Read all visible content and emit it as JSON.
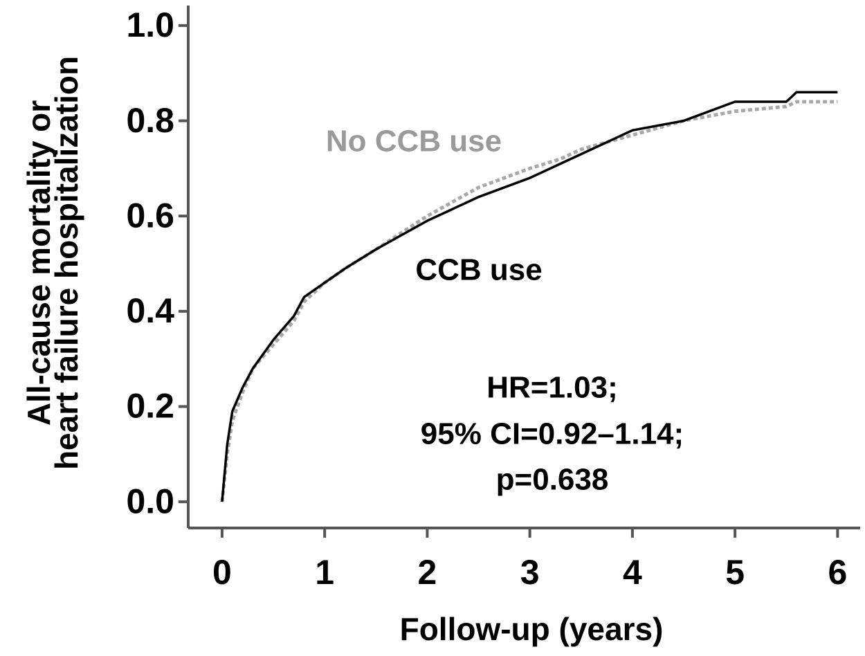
{
  "chart_data": {
    "type": "line",
    "ylabel": [
      "All-cause mortality or",
      "heart failure hospitalization"
    ],
    "xlabel": "Follow-up (years)",
    "annotations": [
      {
        "text": "No CCB use",
        "color": "#9a9a9a"
      },
      {
        "text": "CCB use",
        "color": "#000000"
      },
      {
        "text": "HR=1.03;",
        "color": "#000000"
      },
      {
        "text": "95% CI=0.92–1.14;",
        "color": "#000000"
      },
      {
        "text": "p=0.638",
        "color": "#000000"
      }
    ],
    "x": [
      0,
      0.05,
      0.1,
      0.2,
      0.3,
      0.5,
      0.7,
      0.8,
      1.0,
      1.2,
      1.5,
      2.0,
      2.5,
      3.0,
      3.3,
      3.5,
      4.0,
      4.5,
      5.0,
      5.5,
      5.6,
      6.0
    ],
    "series": [
      {
        "name": "No CCB use",
        "color": "#a8a8a8",
        "dash": true,
        "values": [
          0,
          0.1,
          0.17,
          0.23,
          0.28,
          0.33,
          0.38,
          0.42,
          0.46,
          0.49,
          0.53,
          0.6,
          0.66,
          0.7,
          0.72,
          0.74,
          0.77,
          0.8,
          0.82,
          0.83,
          0.84,
          0.84
        ]
      },
      {
        "name": "CCB use",
        "color": "#000000",
        "dash": false,
        "values": [
          0,
          0.12,
          0.19,
          0.24,
          0.28,
          0.34,
          0.39,
          0.43,
          0.46,
          0.49,
          0.53,
          0.59,
          0.64,
          0.68,
          0.71,
          0.73,
          0.78,
          0.8,
          0.84,
          0.84,
          0.86,
          0.86
        ]
      }
    ],
    "xlim": [
      -0.33,
      6.22
    ],
    "ylim": [
      -0.055,
      1.042
    ],
    "xticks": [
      0,
      1,
      2,
      3,
      4,
      5,
      6
    ],
    "yticks": [
      {
        "value": 0,
        "label": "0.0"
      },
      0.2,
      0.4,
      0.6,
      0.8,
      {
        "value": 1,
        "label": "1.0"
      }
    ],
    "grid": false
  }
}
